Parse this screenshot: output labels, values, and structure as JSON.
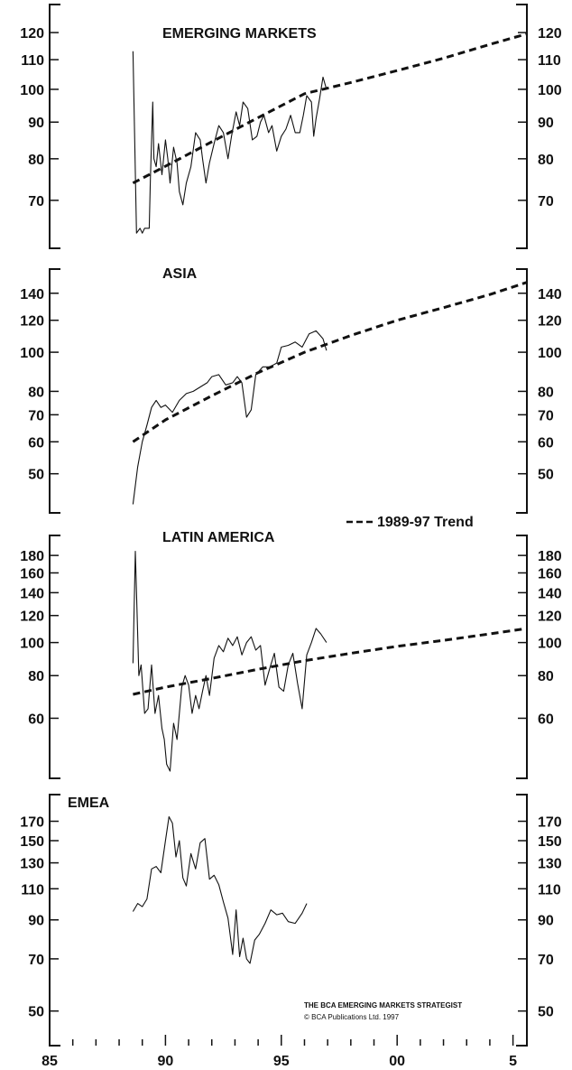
{
  "chart_data": {
    "type": "line",
    "x_axis": {
      "range": [
        1985,
        2005.6
      ],
      "ticks": [
        1985,
        1990,
        1995,
        2000,
        2005
      ],
      "tick_labels": [
        "85",
        "90",
        "95",
        "00",
        "5"
      ]
    },
    "legend": {
      "label": "1989-97 Trend",
      "style": "dashed",
      "placement": "above LATIN AMERICA panel, right"
    },
    "footer": {
      "line1": "THE BCA EMERGING MARKETS STRATEGIST",
      "line2": "© BCA Publications Ltd. 1997"
    },
    "panels": [
      {
        "title": "EMERGING MARKETS",
        "y_scale": "log",
        "ylim": [
          60,
          125
        ],
        "y_ticks": [
          70,
          80,
          90,
          100,
          110,
          120
        ],
        "y_tick_labels": [
          "70",
          "80",
          "90",
          "100",
          "110",
          "120"
        ],
        "series": [
          {
            "values": [
              [
                1988.6,
                113
              ],
              [
                1988.75,
                63
              ],
              [
                1988.9,
                64
              ],
              [
                1989.0,
                63
              ],
              [
                1989.1,
                64
              ],
              [
                1989.3,
                64
              ],
              [
                1989.35,
                75
              ],
              [
                1989.45,
                96
              ],
              [
                1989.5,
                80
              ],
              [
                1989.6,
                78
              ],
              [
                1989.7,
                84
              ],
              [
                1989.85,
                76
              ],
              [
                1990.0,
                85
              ],
              [
                1990.1,
                80
              ],
              [
                1990.2,
                74
              ],
              [
                1990.35,
                83
              ],
              [
                1990.5,
                79
              ],
              [
                1990.6,
                72
              ],
              [
                1990.75,
                69
              ],
              [
                1990.9,
                74
              ],
              [
                1991.1,
                78
              ],
              [
                1991.3,
                87
              ],
              [
                1991.5,
                85
              ],
              [
                1991.6,
                80
              ],
              [
                1991.75,
                74
              ],
              [
                1991.9,
                79
              ],
              [
                1992.1,
                84
              ],
              [
                1992.3,
                89
              ],
              [
                1992.5,
                87
              ],
              [
                1992.7,
                80
              ],
              [
                1992.85,
                86
              ],
              [
                1993.05,
                93
              ],
              [
                1993.2,
                89
              ],
              [
                1993.35,
                96
              ],
              [
                1993.55,
                94
              ],
              [
                1993.75,
                85
              ],
              [
                1993.95,
                86
              ],
              [
                1994.1,
                90
              ],
              [
                1994.25,
                92
              ],
              [
                1994.45,
                87
              ],
              [
                1994.6,
                89
              ],
              [
                1994.8,
                82
              ],
              [
                1995.0,
                86
              ],
              [
                1995.2,
                88
              ],
              [
                1995.4,
                92
              ],
              [
                1995.6,
                87
              ],
              [
                1995.8,
                87
              ],
              [
                1995.95,
                92
              ],
              [
                1996.1,
                98
              ],
              [
                1996.3,
                96
              ],
              [
                1996.4,
                86
              ],
              [
                1996.5,
                91
              ],
              [
                1996.65,
                97
              ],
              [
                1996.8,
                104
              ],
              [
                1996.95,
                100
              ]
            ]
          },
          {
            "style": "dashed",
            "values": [
              [
                1988.6,
                74
              ],
              [
                1990,
                78.1
              ],
              [
                1992,
                84.5
              ],
              [
                1994,
                91.3
              ],
              [
                1996,
                98.6
              ],
              [
                1998,
                102.2
              ],
              [
                2000,
                106.2
              ],
              [
                2002,
                110.5
              ],
              [
                2004,
                115.5
              ],
              [
                2005.6,
                119.5
              ]
            ]
          }
        ]
      },
      {
        "title": "ASIA",
        "y_scale": "log",
        "ylim": [
          40,
          155
        ],
        "y_ticks": [
          50,
          60,
          70,
          80,
          100,
          120,
          140
        ],
        "y_tick_labels": [
          "50",
          "60",
          "70",
          "80",
          "100",
          "120",
          "140"
        ],
        "series": [
          {
            "values": [
              [
                1988.6,
                42
              ],
              [
                1988.8,
                52
              ],
              [
                1989.0,
                60
              ],
              [
                1989.2,
                66
              ],
              [
                1989.4,
                73
              ],
              [
                1989.6,
                76
              ],
              [
                1989.8,
                73
              ],
              [
                1990.0,
                74
              ],
              [
                1990.3,
                71
              ],
              [
                1990.6,
                76
              ],
              [
                1990.9,
                79
              ],
              [
                1991.2,
                80
              ],
              [
                1991.5,
                82
              ],
              [
                1991.8,
                84
              ],
              [
                1992.0,
                87
              ],
              [
                1992.3,
                88
              ],
              [
                1992.6,
                83
              ],
              [
                1992.9,
                84
              ],
              [
                1993.1,
                87
              ],
              [
                1993.3,
                84
              ],
              [
                1993.5,
                69
              ],
              [
                1993.7,
                72
              ],
              [
                1993.9,
                88
              ],
              [
                1994.2,
                92
              ],
              [
                1994.5,
                92
              ],
              [
                1994.8,
                94
              ],
              [
                1995.0,
                103
              ],
              [
                1995.3,
                104
              ],
              [
                1995.6,
                106
              ],
              [
                1995.9,
                103
              ],
              [
                1996.2,
                111
              ],
              [
                1996.5,
                113
              ],
              [
                1996.8,
                108
              ],
              [
                1996.95,
                101
              ]
            ]
          },
          {
            "style": "dashed",
            "values": [
              [
                1988.6,
                60
              ],
              [
                1990,
                68
              ],
              [
                1992,
                78
              ],
              [
                1994,
                89
              ],
              [
                1996,
                100
              ],
              [
                1998,
                110
              ],
              [
                2000,
                120
              ],
              [
                2002,
                129
              ],
              [
                2004,
                139
              ],
              [
                2005.6,
                149
              ]
            ]
          }
        ]
      },
      {
        "title": "LATIN AMERICA",
        "y_scale": "log",
        "ylim": [
          40,
          195
        ],
        "y_ticks": [
          60,
          80,
          100,
          120,
          140,
          160,
          180
        ],
        "y_tick_labels": [
          "60",
          "80",
          "100",
          "120",
          "140",
          "160",
          "180"
        ],
        "series": [
          {
            "values": [
              [
                1988.6,
                87
              ],
              [
                1988.7,
                185
              ],
              [
                1988.85,
                80
              ],
              [
                1988.95,
                86
              ],
              [
                1989.1,
                62
              ],
              [
                1989.25,
                64
              ],
              [
                1989.4,
                86
              ],
              [
                1989.55,
                62
              ],
              [
                1989.7,
                70
              ],
              [
                1989.85,
                56
              ],
              [
                1989.95,
                52
              ],
              [
                1990.05,
                44
              ],
              [
                1990.2,
                42
              ],
              [
                1990.35,
                58
              ],
              [
                1990.5,
                52
              ],
              [
                1990.7,
                74
              ],
              [
                1990.85,
                80
              ],
              [
                1991.0,
                75
              ],
              [
                1991.15,
                62
              ],
              [
                1991.3,
                70
              ],
              [
                1991.45,
                64
              ],
              [
                1991.6,
                72
              ],
              [
                1991.75,
                80
              ],
              [
                1991.9,
                70
              ],
              [
                1992.1,
                90
              ],
              [
                1992.3,
                98
              ],
              [
                1992.5,
                94
              ],
              [
                1992.7,
                103
              ],
              [
                1992.9,
                98
              ],
              [
                1993.1,
                104
              ],
              [
                1993.3,
                92
              ],
              [
                1993.5,
                100
              ],
              [
                1993.7,
                104
              ],
              [
                1993.9,
                95
              ],
              [
                1994.1,
                98
              ],
              [
                1994.3,
                75
              ],
              [
                1994.5,
                84
              ],
              [
                1994.7,
                93
              ],
              [
                1994.9,
                74
              ],
              [
                1995.1,
                72
              ],
              [
                1995.3,
                86
              ],
              [
                1995.5,
                93
              ],
              [
                1995.7,
                76
              ],
              [
                1995.9,
                64
              ],
              [
                1996.1,
                92
              ],
              [
                1996.3,
                100
              ],
              [
                1996.5,
                110
              ],
              [
                1996.7,
                106
              ],
              [
                1996.95,
                100
              ]
            ]
          },
          {
            "style": "dashed",
            "values": [
              [
                1988.6,
                70.5
              ],
              [
                1990,
                74
              ],
              [
                1992,
                78.5
              ],
              [
                1994,
                83.5
              ],
              [
                1996,
                88.5
              ],
              [
                1998,
                93
              ],
              [
                2000,
                97.5
              ],
              [
                2002,
                101.5
              ],
              [
                2004,
                106
              ],
              [
                2005.6,
                110
              ]
            ]
          }
        ]
      },
      {
        "title": "EMEA",
        "y_scale": "log",
        "ylim": [
          40,
          185
        ],
        "y_ticks": [
          50,
          70,
          90,
          110,
          130,
          150,
          170
        ],
        "y_tick_labels": [
          "50",
          "70",
          "90",
          "110",
          "130",
          "150",
          "170"
        ],
        "series": [
          {
            "values": [
              [
                1988.6,
                95
              ],
              [
                1988.8,
                100
              ],
              [
                1989.0,
                98
              ],
              [
                1989.2,
                103
              ],
              [
                1989.4,
                125
              ],
              [
                1989.6,
                127
              ],
              [
                1989.8,
                122
              ],
              [
                1990.0,
                150
              ],
              [
                1990.15,
                175
              ],
              [
                1990.3,
                168
              ],
              [
                1990.45,
                135
              ],
              [
                1990.6,
                150
              ],
              [
                1990.75,
                118
              ],
              [
                1990.9,
                112
              ],
              [
                1991.1,
                138
              ],
              [
                1991.3,
                125
              ],
              [
                1991.5,
                148
              ],
              [
                1991.7,
                152
              ],
              [
                1991.9,
                117
              ],
              [
                1992.1,
                120
              ],
              [
                1992.3,
                113
              ],
              [
                1992.5,
                101
              ],
              [
                1992.7,
                91
              ],
              [
                1992.9,
                72
              ],
              [
                1993.05,
                96
              ],
              [
                1993.2,
                71
              ],
              [
                1993.35,
                80
              ],
              [
                1993.5,
                70
              ],
              [
                1993.65,
                68
              ],
              [
                1993.85,
                79
              ],
              [
                1994.05,
                82
              ],
              [
                1994.3,
                88
              ],
              [
                1994.55,
                96
              ],
              [
                1994.8,
                93
              ],
              [
                1995.05,
                94
              ],
              [
                1995.3,
                89
              ],
              [
                1995.6,
                88
              ],
              [
                1995.9,
                94
              ],
              [
                1996.1,
                100
              ]
            ]
          }
        ]
      }
    ]
  }
}
